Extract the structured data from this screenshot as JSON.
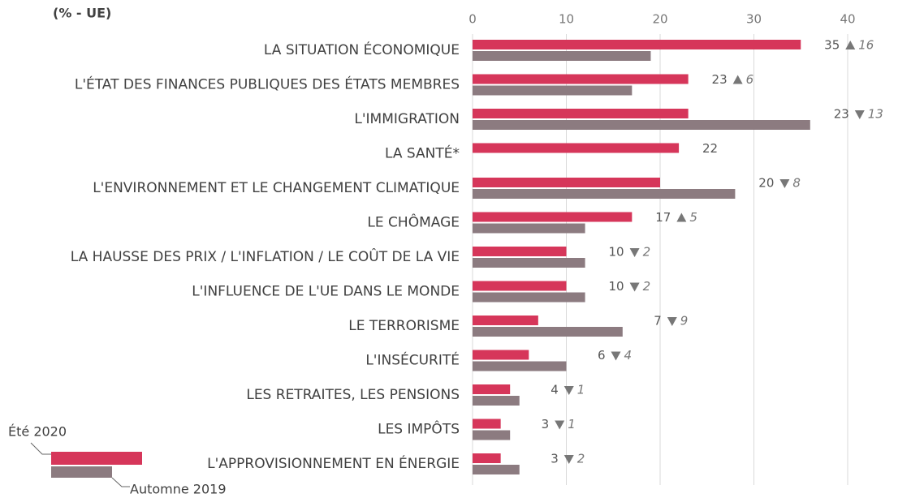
{
  "chart_data": {
    "type": "bar",
    "orientation": "horizontal",
    "subtitle": "(% - UE)",
    "categories": [
      "LA SITUATION ÉCONOMIQUE",
      "L'ÉTAT DES FINANCES PUBLIQUES DES ÉTATS MEMBRES",
      "L'IMMIGRATION",
      "LA SANTÉ*",
      "L'ENVIRONNEMENT ET LE CHANGEMENT CLIMATIQUE",
      "LE CHÔMAGE",
      "LA HAUSSE DES PRIX / L'INFLATION / LE COÛT DE LA VIE",
      "L'INFLUENCE DE L'UE DANS LE MONDE",
      "LE TERRORISME",
      "L'INSÉCURITÉ",
      "LES RETRAITES, LES PENSIONS",
      "LES IMPÔTS",
      "L'APPROVISIONNEMENT EN ÉNERGIE"
    ],
    "series": [
      {
        "name": "Été 2020",
        "color": "#d6365a",
        "values": [
          35,
          23,
          23,
          22,
          20,
          17,
          10,
          10,
          7,
          6,
          4,
          3,
          3
        ]
      },
      {
        "name": "Automne 2019",
        "color": "#8c7b80",
        "values": [
          19,
          17,
          36,
          null,
          28,
          12,
          12,
          12,
          16,
          10,
          5,
          4,
          5
        ]
      }
    ],
    "changes": [
      {
        "direction": "up",
        "value": 16
      },
      {
        "direction": "up",
        "value": 6
      },
      {
        "direction": "down",
        "value": 13
      },
      null,
      {
        "direction": "down",
        "value": 8
      },
      {
        "direction": "up",
        "value": 5
      },
      {
        "direction": "down",
        "value": 2
      },
      {
        "direction": "down",
        "value": 2
      },
      {
        "direction": "down",
        "value": 9
      },
      {
        "direction": "down",
        "value": 4
      },
      {
        "direction": "down",
        "value": 1
      },
      {
        "direction": "down",
        "value": 1
      },
      {
        "direction": "down",
        "value": 2
      }
    ],
    "xlim": [
      0,
      40
    ],
    "xticks": [
      0,
      10,
      20,
      30,
      40
    ],
    "grid": true,
    "legend": "bottom-left"
  }
}
